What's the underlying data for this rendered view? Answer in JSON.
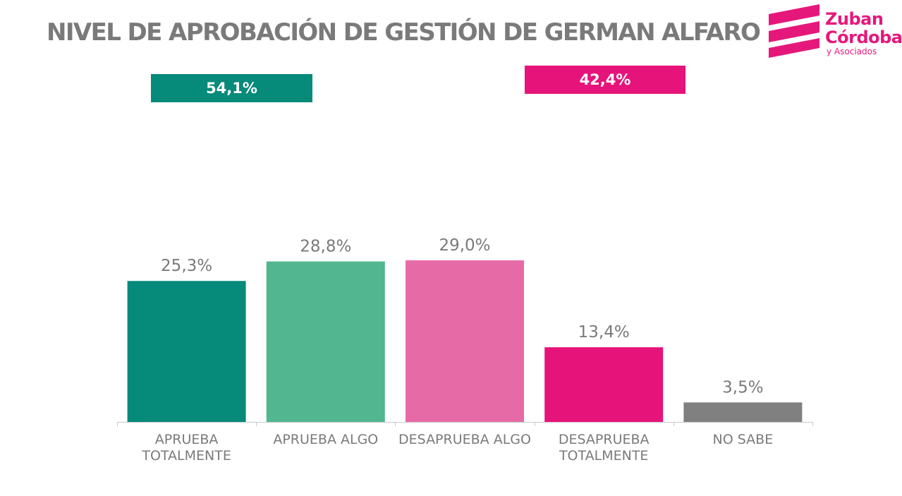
{
  "title": "NIVEL DE APROBACIÓN DE GESTIÓN DE GERMAN ALFARO",
  "summary": {
    "approve": {
      "label": "54,1%",
      "color": "#068a7a"
    },
    "disapprove": {
      "label": "42,4%",
      "color": "#e6137a"
    }
  },
  "logo": {
    "line1": "Zuban",
    "line2": "Córdoba",
    "line3": "y Asociados",
    "color": "#e6177a"
  },
  "chart_data": {
    "type": "bar",
    "title": "NIVEL DE APROBACIÓN DE GESTIÓN DE GERMAN ALFARO",
    "categories": [
      "APRUEBA TOTALMENTE",
      "APRUEBA ALGO",
      "DESAPRUEBA ALGO",
      "DESAPRUEBA TOTALMENTE",
      "NO SABE"
    ],
    "values": [
      25.3,
      28.8,
      29.0,
      13.4,
      3.5
    ],
    "value_labels": [
      "25,3%",
      "28,8%",
      "29,0%",
      "13,4%",
      "3,5%"
    ],
    "colors": [
      "#068a7a",
      "#52b690",
      "#e66aa6",
      "#e6137a",
      "#808080"
    ],
    "xlabel": "",
    "ylabel": "",
    "ylim": [
      0,
      29.0
    ],
    "grid": false,
    "legend": "none"
  }
}
